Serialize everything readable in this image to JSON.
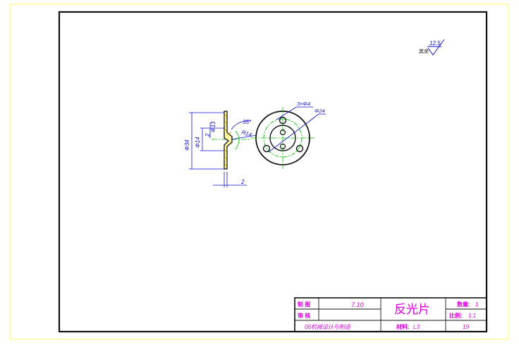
{
  "surface_finish": {
    "value": "12.5",
    "note": "其余"
  },
  "dimensions": {
    "hole_pattern": "3×Φ4",
    "bolt_circle": "Φ24",
    "outer_dia": "Φ34",
    "inner_dia": "Φ14",
    "step_dia": "Φ13",
    "step_depth": "2",
    "angle": "35°",
    "radius": "R14",
    "thickness": "2"
  },
  "title_block": {
    "drawn_label": "制 图",
    "drawn_date": "7.10",
    "checked_label": "审 核",
    "part_name": "反光片",
    "quantity_label": "数量:",
    "quantity_value": "1",
    "scale_label": "比例:",
    "scale_value": "1:1",
    "school": "06机械设计与制造",
    "material_label": "材料:",
    "material_value": "L3",
    "sheet_number": "19"
  },
  "colors": {
    "outline": "#111111",
    "dimension": "#1010d0",
    "centerline": "#00c000",
    "title_text": "#e000e0",
    "hatch": "#d8c800",
    "frame": "#ffff00"
  }
}
